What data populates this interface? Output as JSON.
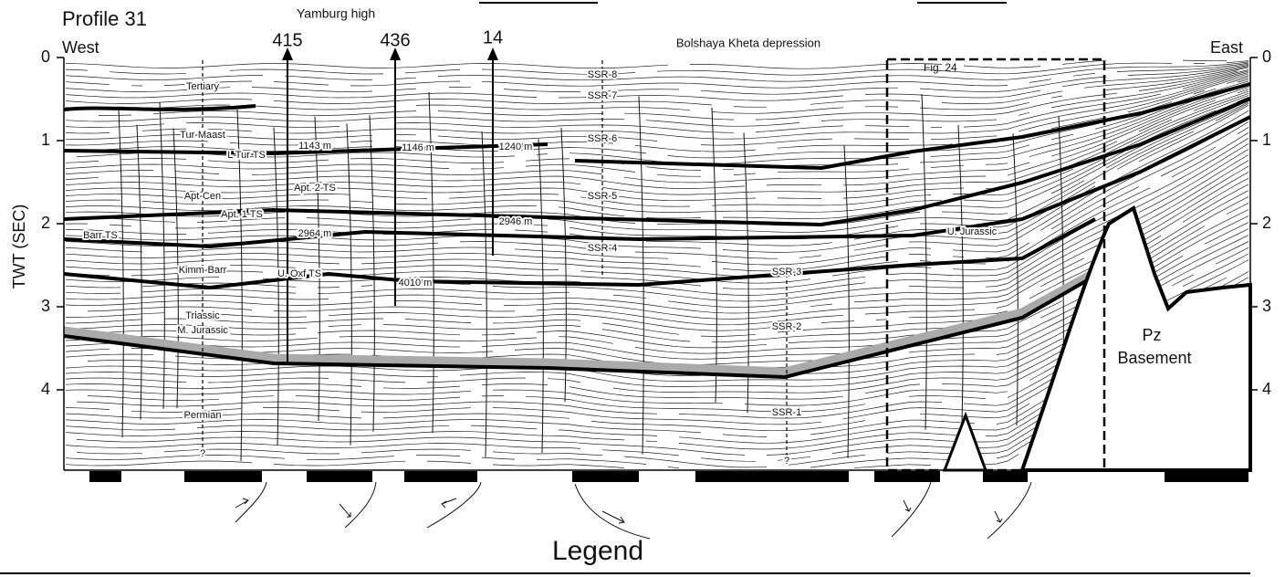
{
  "header": {
    "title": "Profile 31",
    "west": "West",
    "east": "East",
    "high": "Yamburg high",
    "depression": "Bolshaya Kheta depression"
  },
  "axis": {
    "label": "TWT (SEC)",
    "ticks": [
      0,
      1,
      2,
      3,
      4
    ]
  },
  "wells": [
    "415",
    "436",
    "14"
  ],
  "horizons": [
    "Tertiary",
    "Tur-Maast",
    "L Tur TS",
    "Apt-Cen",
    "Apt. 1 TS",
    "Barr TS",
    "Kimm-Barr",
    "U. Oxf TS",
    "Triassic",
    "M. Jurassic",
    "Permian",
    "?",
    "Apt. 2 TS"
  ],
  "depths": [
    "1143 m",
    "1146 m",
    "1240 m",
    "2964 m",
    "2946 m",
    "4010 m"
  ],
  "sequences": [
    "SSR-8",
    "SSR-7",
    "SSR-6",
    "SSR-5",
    "SSR-4",
    "SSR-3",
    "SSR-2",
    "SSR-1",
    "?"
  ],
  "other": {
    "figure": "Fig. 24",
    "jurassic": "U. Jurassic",
    "pz": "Pz",
    "basement": "Basement"
  },
  "legend": "Legend"
}
